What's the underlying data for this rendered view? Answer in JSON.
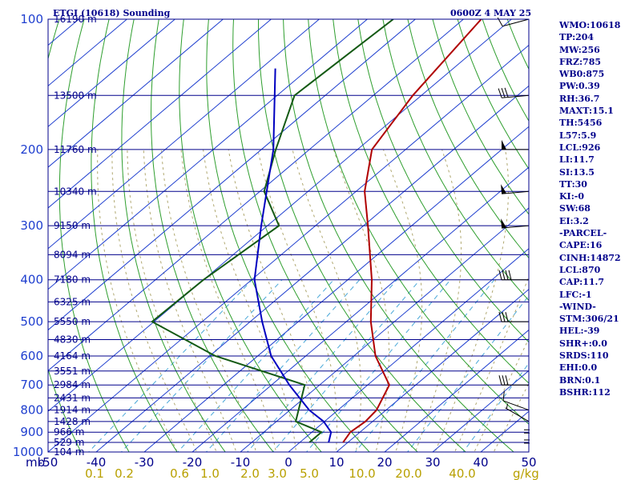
{
  "header": {
    "station": "ETGI (10618) Sounding",
    "time": "0600Z  4 MAY 25"
  },
  "indices": [
    "WMO:10618",
    "TP:204",
    "MW:256",
    "FRZ:785",
    "WB0:875",
    "PW:0.39",
    "RH:36.7",
    "MAXT:15.1",
    "TH:5456",
    "L57:5.9",
    "LCL:926",
    "LI:11.7",
    "SI:13.5",
    "TT:30",
    "KI:-0",
    "SW:68",
    "EI:3.2",
    "-PARCEL-",
    "CAPE:16",
    "CINH:14872",
    "LCL:870",
    "CAP:11.7",
    "LFC:-1",
    "-WIND-",
    "STM:306/21",
    "HEL:-39",
    "SHR+:0.0",
    "SRDS:110",
    "EHI:0.0",
    "BRN:0.1",
    "BSHR:112"
  ],
  "colors": {
    "isobar": "#00008b",
    "isotherm": "#1f3fcf",
    "dry_adiabat": "#2e9e2e",
    "moist_adiabat": "#b0a870",
    "mixing_ratio": "#4aa8d8",
    "temperature": "#b00000",
    "dewpoint": "#145a14",
    "wet_bulb": "#0000c0",
    "wind": "#000000"
  },
  "chart_data": {
    "type": "skew-t",
    "title": "ETGI (10618) Sounding",
    "ylabel": "mb",
    "ylim": [
      1000,
      100
    ],
    "xlim": [
      -50,
      50
    ],
    "y_scale": "log",
    "pressure_ticks": [
      100,
      200,
      300,
      400,
      500,
      600,
      700,
      800,
      900,
      1000
    ],
    "temperature_ticks": [
      "-50",
      "-40",
      "-30",
      "-20",
      "-10",
      "0",
      "10",
      "20",
      "30",
      "40",
      "50"
    ],
    "mixing_ratio_ticks": [
      "0.1",
      "0.2",
      "0.6",
      "1.0",
      "2.0",
      "3.0",
      "5.0",
      "10.0",
      "20.0",
      "40.0"
    ],
    "mixing_ratio_unit": "g/kg",
    "height_levels": [
      {
        "p": 100,
        "label": "16190 m"
      },
      {
        "p": 150,
        "label": "13500 m"
      },
      {
        "p": 200,
        "label": "11760 m"
      },
      {
        "p": 250,
        "label": "10340 m"
      },
      {
        "p": 300,
        "label": "9150 m"
      },
      {
        "p": 350,
        "label": "8094 m"
      },
      {
        "p": 400,
        "label": "7180 m"
      },
      {
        "p": 450,
        "label": "6325 m"
      },
      {
        "p": 500,
        "label": "5550 m"
      },
      {
        "p": 550,
        "label": "4830 m"
      },
      {
        "p": 600,
        "label": "4164 m"
      },
      {
        "p": 650,
        "label": "3551 m"
      },
      {
        "p": 700,
        "label": "2984 m"
      },
      {
        "p": 750,
        "label": "2431 m"
      },
      {
        "p": 800,
        "label": "1914 m"
      },
      {
        "p": 850,
        "label": "1428 m"
      },
      {
        "p": 900,
        "label": "966 m"
      },
      {
        "p": 950,
        "label": "529 m"
      },
      {
        "p": 1000,
        "label": "104 m"
      }
    ],
    "series": [
      {
        "key": "temperature",
        "p": [
          100,
          150,
          200,
          250,
          300,
          400,
          500,
          600,
          700,
          800,
          850,
          900,
          950
        ],
        "t": [
          -66.3,
          -61.8,
          -57.0,
          -48.2,
          -39.1,
          -25.0,
          -14.9,
          -5.5,
          4.5,
          8.0,
          8.5,
          8.0,
          9.0
        ]
      },
      {
        "key": "dewpoint",
        "p": [
          100,
          150,
          200,
          250,
          300,
          400,
          500,
          600,
          700,
          850,
          900,
          950
        ],
        "t": [
          -84.6,
          -86.4,
          -77.0,
          -69.1,
          -57.6,
          -60.0,
          -60.4,
          -38.8,
          -13.1,
          -6.0,
          2.0,
          2.0
        ]
      },
      {
        "key": "wet_bulb",
        "p": [
          130,
          200,
          300,
          400,
          500,
          600,
          700,
          800,
          850,
          900,
          950
        ],
        "t": [
          -97.0,
          -77.5,
          -61.3,
          -49.4,
          -37.5,
          -27.2,
          -16.3,
          -6.0,
          -0.2,
          4.0,
          6.0
        ]
      }
    ],
    "wind_barbs": [
      {
        "p": 100,
        "dir": 255,
        "speed_kt": 10
      },
      {
        "p": 150,
        "dir": 265,
        "speed_kt": 30
      },
      {
        "p": 200,
        "dir": 270,
        "speed_kt": 50
      },
      {
        "p": 250,
        "dir": 265,
        "speed_kt": 50
      },
      {
        "p": 300,
        "dir": 265,
        "speed_kt": 50
      },
      {
        "p": 400,
        "dir": 270,
        "speed_kt": 40
      },
      {
        "p": 500,
        "dir": 270,
        "speed_kt": 30
      },
      {
        "p": 700,
        "dir": 270,
        "speed_kt": 30
      },
      {
        "p": 800,
        "dir": 290,
        "speed_kt": 10
      },
      {
        "p": 850,
        "dir": 300,
        "speed_kt": 5
      },
      {
        "p": 900,
        "dir": 0,
        "speed_kt": 0
      },
      {
        "p": 950,
        "dir": 0,
        "speed_kt": 0
      }
    ]
  }
}
